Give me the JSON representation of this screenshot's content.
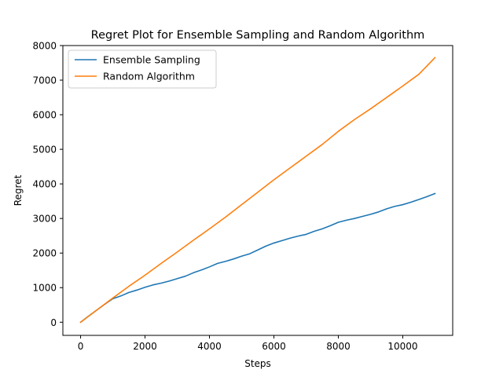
{
  "chart_data": {
    "type": "line",
    "title": "Regret Plot for Ensemble Sampling and Random Algorithm",
    "xlabel": "Steps",
    "ylabel": "Regret",
    "xlim": [
      -550,
      11550
    ],
    "ylim": [
      -380,
      8000
    ],
    "xticks": [
      0,
      2000,
      4000,
      6000,
      8000,
      10000
    ],
    "yticks": [
      0,
      1000,
      2000,
      3000,
      4000,
      5000,
      6000,
      7000,
      8000
    ],
    "grid": false,
    "legend_position": "top-left",
    "series": [
      {
        "name": "Ensemble Sampling",
        "color": "#1f77b4",
        "x": [
          0,
          250,
          500,
          750,
          1000,
          1250,
          1500,
          1750,
          2000,
          2250,
          2500,
          2750,
          3000,
          3250,
          3500,
          3750,
          4000,
          4250,
          4500,
          4750,
          5000,
          5250,
          5500,
          5750,
          6000,
          6250,
          6500,
          6750,
          7000,
          7250,
          7500,
          7750,
          8000,
          8250,
          8500,
          8750,
          9000,
          9250,
          9500,
          9750,
          10000,
          10250,
          10500,
          10750,
          11000
        ],
        "y": [
          0,
          180,
          350,
          520,
          680,
          760,
          860,
          930,
          1010,
          1080,
          1130,
          1190,
          1260,
          1330,
          1430,
          1510,
          1600,
          1700,
          1760,
          1830,
          1910,
          1980,
          2090,
          2200,
          2290,
          2360,
          2430,
          2490,
          2540,
          2630,
          2700,
          2790,
          2890,
          2950,
          3000,
          3060,
          3120,
          3190,
          3280,
          3350,
          3400,
          3470,
          3550,
          3630,
          3720
        ]
      },
      {
        "name": "Random Algorithm",
        "color": "#ff7f0e",
        "x": [
          0,
          500,
          1000,
          1500,
          2000,
          2500,
          3000,
          3500,
          4000,
          4500,
          5000,
          5500,
          6000,
          6500,
          7000,
          7500,
          8000,
          8500,
          9000,
          9500,
          10000,
          10500,
          11000
        ],
        "y": [
          0,
          350,
          700,
          1040,
          1360,
          1700,
          2030,
          2370,
          2700,
          3040,
          3400,
          3760,
          4120,
          4460,
          4800,
          5140,
          5520,
          5860,
          6170,
          6500,
          6830,
          7170,
          7650
        ]
      }
    ]
  }
}
